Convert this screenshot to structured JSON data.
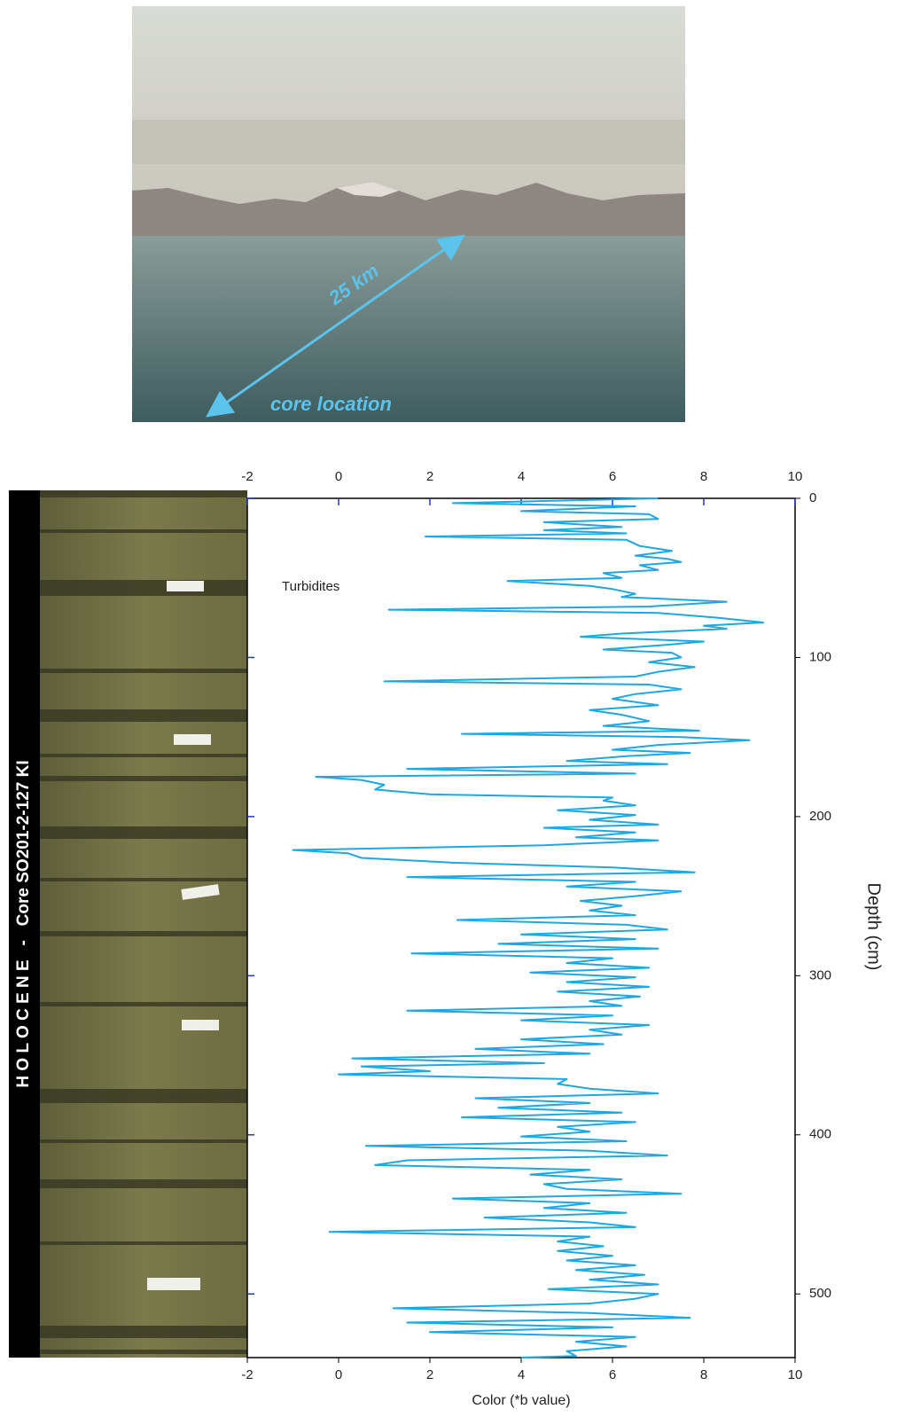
{
  "figure": {
    "photo_distance_label": "25 km",
    "photo_location_label": "core location",
    "core_label": "H O L O C E N E   -   Core SO201-2-127 KI"
  },
  "chart_data": {
    "type": "line",
    "x_label": "Color (*b value)",
    "y_label": "Depth (cm)",
    "annotation": "Turbidites",
    "color": "#1ea7e1",
    "y_inverted": true,
    "xlim": [
      -2,
      10
    ],
    "xticks": [
      -2,
      0,
      2,
      4,
      6,
      8,
      10
    ],
    "ylim": [
      0,
      540
    ],
    "yticks": [
      0,
      100,
      200,
      300,
      400,
      500
    ],
    "depth": [
      0,
      3,
      5,
      8,
      10,
      13,
      15,
      18,
      20,
      22,
      24,
      26,
      30,
      33,
      36,
      38,
      40,
      42,
      45,
      47,
      50,
      52,
      55,
      57,
      60,
      62,
      65,
      68,
      70,
      72,
      75,
      78,
      80,
      82,
      85,
      87,
      90,
      92,
      95,
      97,
      100,
      103,
      106,
      109,
      112,
      115,
      117,
      120,
      123,
      126,
      130,
      133,
      136,
      140,
      143,
      146,
      148,
      150,
      152,
      155,
      158,
      160,
      162,
      165,
      167,
      170,
      173,
      175,
      177,
      180,
      183,
      186,
      188,
      190,
      193,
      196,
      199,
      202,
      205,
      207,
      210,
      213,
      215,
      218,
      221,
      223,
      226,
      229,
      232,
      235,
      238,
      241,
      244,
      247,
      250,
      253,
      256,
      259,
      262,
      265,
      268,
      271,
      274,
      277,
      280,
      283,
      286,
      289,
      292,
      295,
      298,
      301,
      304,
      307,
      310,
      313,
      316,
      319,
      322,
      325,
      328,
      331,
      334,
      337,
      340,
      343,
      346,
      349,
      352,
      355,
      357,
      360,
      362,
      365,
      368,
      371,
      374,
      377,
      380,
      383,
      386,
      389,
      392,
      395,
      398,
      401,
      404,
      407,
      410,
      413,
      416,
      419,
      422,
      425,
      428,
      431,
      434,
      437,
      440,
      443,
      446,
      449,
      452,
      455,
      458,
      461,
      464,
      467,
      470,
      473,
      476,
      479,
      482,
      485,
      488,
      491,
      494,
      497,
      500,
      503,
      506,
      509,
      512,
      515,
      518,
      521,
      524,
      527,
      530,
      533,
      536,
      539,
      540
    ],
    "values": [
      7.0,
      2.5,
      6.5,
      4.0,
      6.8,
      7.0,
      4.5,
      6.2,
      4.5,
      6.3,
      1.9,
      6.3,
      6.6,
      7.3,
      6.5,
      7.2,
      7.5,
      6.6,
      7.0,
      5.8,
      6.2,
      3.7,
      5.5,
      6.0,
      6.5,
      6.2,
      8.5,
      6.8,
      1.1,
      7.0,
      8.3,
      9.3,
      8.0,
      8.5,
      6.2,
      5.3,
      8.0,
      7.2,
      5.8,
      7.3,
      7.5,
      6.8,
      7.8,
      7.0,
      6.5,
      1.0,
      6.8,
      7.5,
      6.5,
      6.0,
      7.0,
      5.5,
      6.2,
      6.8,
      5.8,
      7.9,
      2.7,
      7.5,
      9.0,
      7.0,
      6.0,
      7.7,
      6.3,
      5.0,
      7.2,
      1.5,
      6.5,
      -0.5,
      0.5,
      1.0,
      0.8,
      2.0,
      6.0,
      5.8,
      6.5,
      4.8,
      6.5,
      5.5,
      7.0,
      4.5,
      6.5,
      5.2,
      7.0,
      4.5,
      -1.0,
      0.2,
      0.5,
      2.5,
      6.0,
      7.8,
      1.5,
      6.5,
      5.0,
      7.5,
      6.5,
      5.3,
      6.2,
      5.5,
      6.5,
      2.6,
      6.3,
      7.2,
      4.0,
      6.5,
      3.5,
      7.0,
      1.6,
      6.0,
      5.0,
      6.8,
      4.2,
      6.5,
      5.0,
      6.8,
      4.8,
      6.6,
      5.5,
      6.2,
      1.5,
      6.0,
      4.0,
      6.8,
      5.5,
      6.2,
      4.0,
      5.8,
      3.0,
      5.5,
      0.3,
      4.5,
      0.5,
      2.0,
      0.0,
      5.0,
      4.8,
      5.5,
      7.0,
      3.0,
      5.5,
      3.5,
      6.2,
      2.7,
      6.5,
      4.8,
      5.5,
      4.0,
      6.3,
      0.6,
      5.5,
      7.2,
      1.5,
      0.8,
      5.5,
      4.2,
      6.2,
      4.5,
      5.0,
      7.5,
      2.5,
      5.5,
      4.5,
      6.3,
      3.2,
      5.5,
      6.5,
      -0.2,
      5.5,
      4.8,
      5.8,
      4.8,
      6.0,
      5.0,
      6.5,
      5.2,
      6.7,
      5.5,
      7.0,
      4.6,
      7.0,
      6.5,
      5.5,
      1.2,
      5.5,
      7.7,
      1.5,
      6.0,
      2.0,
      6.5,
      5.2,
      6.3,
      5.0,
      5.2,
      4.0
    ]
  }
}
